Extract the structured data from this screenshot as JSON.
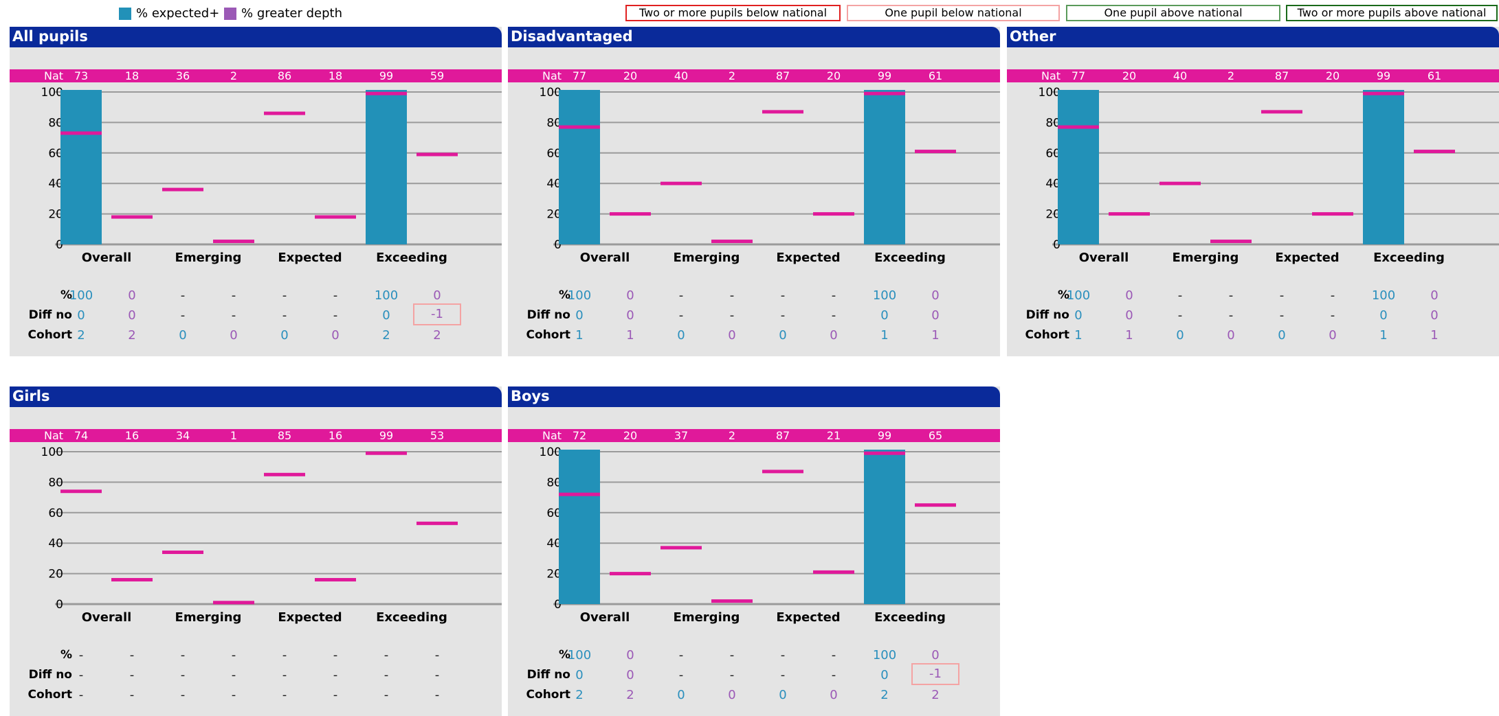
{
  "legend": {
    "expected": {
      "label": "% expected+",
      "color": "#2291b8"
    },
    "greater_depth": {
      "label": "% greater depth",
      "color": "#9b59b6"
    }
  },
  "key": [
    {
      "label": "Two or more pupils below national",
      "color": "#e02020"
    },
    {
      "label": "One pupil below national",
      "color": "#f4a3a3"
    },
    {
      "label": "One pupil above national",
      "color": "#5a9a5a"
    },
    {
      "label": "Two or more pupils above national",
      "color": "#1a6a1a"
    }
  ],
  "row_labels": {
    "nat": "Nat",
    "pct": "%",
    "diff": "Diff no",
    "cohort": "Cohort"
  },
  "categories": [
    "Overall",
    "Emerging",
    "Expected",
    "Exceeding"
  ],
  "colors": {
    "bar": "#2291b8",
    "national_marker": "#e0199a",
    "grid": "#9a9a9a"
  },
  "chart_data": [
    {
      "type": "bar",
      "title": "All pupils",
      "categories": [
        "Overall",
        "Emerging",
        "Expected",
        "Exceeding"
      ],
      "ylim": [
        0,
        100
      ],
      "yticks": [
        "0",
        "20",
        "40",
        "60",
        "80",
        "100"
      ],
      "series": [
        {
          "name": "% expected+",
          "values": [
            100,
            null,
            null,
            100
          ]
        },
        {
          "name": "% greater depth",
          "values": [
            0,
            null,
            null,
            0
          ]
        }
      ],
      "national": [
        "73",
        "18",
        "36",
        "2",
        "86",
        "18",
        "99",
        "59"
      ],
      "pct": [
        "100",
        "0",
        "-",
        "-",
        "-",
        "-",
        "100",
        "0"
      ],
      "diff": [
        "0",
        "0",
        "-",
        "-",
        "-",
        "-",
        "0",
        "-1"
      ],
      "cohort": [
        "2",
        "2",
        "0",
        "0",
        "0",
        "0",
        "2",
        "2"
      ],
      "flags": {
        "diff_7": "one_below"
      }
    },
    {
      "type": "bar",
      "title": "Disadvantaged",
      "categories": [
        "Overall",
        "Emerging",
        "Expected",
        "Exceeding"
      ],
      "ylim": [
        0,
        100
      ],
      "yticks": [
        "0",
        "20",
        "40",
        "60",
        "80",
        "100"
      ],
      "series": [
        {
          "name": "% expected+",
          "values": [
            100,
            null,
            null,
            100
          ]
        },
        {
          "name": "% greater depth",
          "values": [
            0,
            null,
            null,
            0
          ]
        }
      ],
      "national": [
        "77",
        "20",
        "40",
        "2",
        "87",
        "20",
        "99",
        "61"
      ],
      "pct": [
        "100",
        "0",
        "-",
        "-",
        "-",
        "-",
        "100",
        "0"
      ],
      "diff": [
        "0",
        "0",
        "-",
        "-",
        "-",
        "-",
        "0",
        "0"
      ],
      "cohort": [
        "1",
        "1",
        "0",
        "0",
        "0",
        "0",
        "1",
        "1"
      ]
    },
    {
      "type": "bar",
      "title": "Other",
      "categories": [
        "Overall",
        "Emerging",
        "Expected",
        "Exceeding"
      ],
      "ylim": [
        0,
        100
      ],
      "yticks": [
        "0",
        "20",
        "40",
        "60",
        "80",
        "100"
      ],
      "series": [
        {
          "name": "% expected+",
          "values": [
            100,
            null,
            null,
            100
          ]
        },
        {
          "name": "% greater depth",
          "values": [
            0,
            null,
            null,
            0
          ]
        }
      ],
      "national": [
        "77",
        "20",
        "40",
        "2",
        "87",
        "20",
        "99",
        "61"
      ],
      "pct": [
        "100",
        "0",
        "-",
        "-",
        "-",
        "-",
        "100",
        "0"
      ],
      "diff": [
        "0",
        "0",
        "-",
        "-",
        "-",
        "-",
        "0",
        "0"
      ],
      "cohort": [
        "1",
        "1",
        "0",
        "0",
        "0",
        "0",
        "1",
        "1"
      ]
    },
    {
      "type": "bar",
      "title": "Girls",
      "categories": [
        "Overall",
        "Emerging",
        "Expected",
        "Exceeding"
      ],
      "ylim": [
        0,
        100
      ],
      "yticks": [
        "0",
        "20",
        "40",
        "60",
        "80",
        "100"
      ],
      "series": [
        {
          "name": "% expected+",
          "values": [
            null,
            null,
            null,
            null
          ]
        },
        {
          "name": "% greater depth",
          "values": [
            null,
            null,
            null,
            null
          ]
        }
      ],
      "national": [
        "74",
        "16",
        "34",
        "1",
        "85",
        "16",
        "99",
        "53"
      ],
      "pct": [
        "-",
        "-",
        "-",
        "-",
        "-",
        "-",
        "-",
        "-"
      ],
      "diff": [
        "-",
        "-",
        "-",
        "-",
        "-",
        "-",
        "-",
        "-"
      ],
      "cohort": [
        "-",
        "-",
        "-",
        "-",
        "-",
        "-",
        "-",
        "-"
      ]
    },
    {
      "type": "bar",
      "title": "Boys",
      "categories": [
        "Overall",
        "Emerging",
        "Expected",
        "Exceeding"
      ],
      "ylim": [
        0,
        100
      ],
      "yticks": [
        "0",
        "20",
        "40",
        "60",
        "80",
        "100"
      ],
      "series": [
        {
          "name": "% expected+",
          "values": [
            100,
            null,
            null,
            100
          ]
        },
        {
          "name": "% greater depth",
          "values": [
            0,
            null,
            null,
            0
          ]
        }
      ],
      "national": [
        "72",
        "20",
        "37",
        "2",
        "87",
        "21",
        "99",
        "65"
      ],
      "pct": [
        "100",
        "0",
        "-",
        "-",
        "-",
        "-",
        "100",
        "0"
      ],
      "diff": [
        "0",
        "0",
        "-",
        "-",
        "-",
        "-",
        "0",
        "-1"
      ],
      "cohort": [
        "2",
        "2",
        "0",
        "0",
        "0",
        "0",
        "2",
        "2"
      ],
      "flags": {
        "diff_7": "one_below"
      }
    }
  ]
}
